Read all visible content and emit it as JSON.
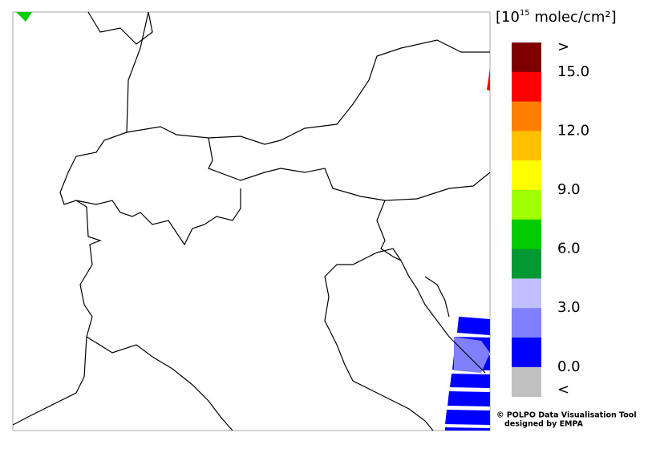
{
  "colorbar": {
    "unit_prefix": "[10",
    "unit_exponent": "15",
    "unit_suffix": " molec/cm²]",
    "colors": [
      "#800000",
      "#ff0000",
      "#ff8000",
      "#ffc000",
      "#ffff00",
      "#a0ff00",
      "#00cc00",
      "#009933",
      "#c0c0ff",
      "#8080ff",
      "#0000ff",
      "#c0c0c0"
    ],
    "labels": [
      ">",
      "15.0",
      "12.0",
      "9.0",
      "6.0",
      "3.0",
      "0.0",
      "<"
    ]
  },
  "credits": {
    "line1": "© POLPO Data Visualisation Tool",
    "line2": "designed by EMPA"
  }
}
